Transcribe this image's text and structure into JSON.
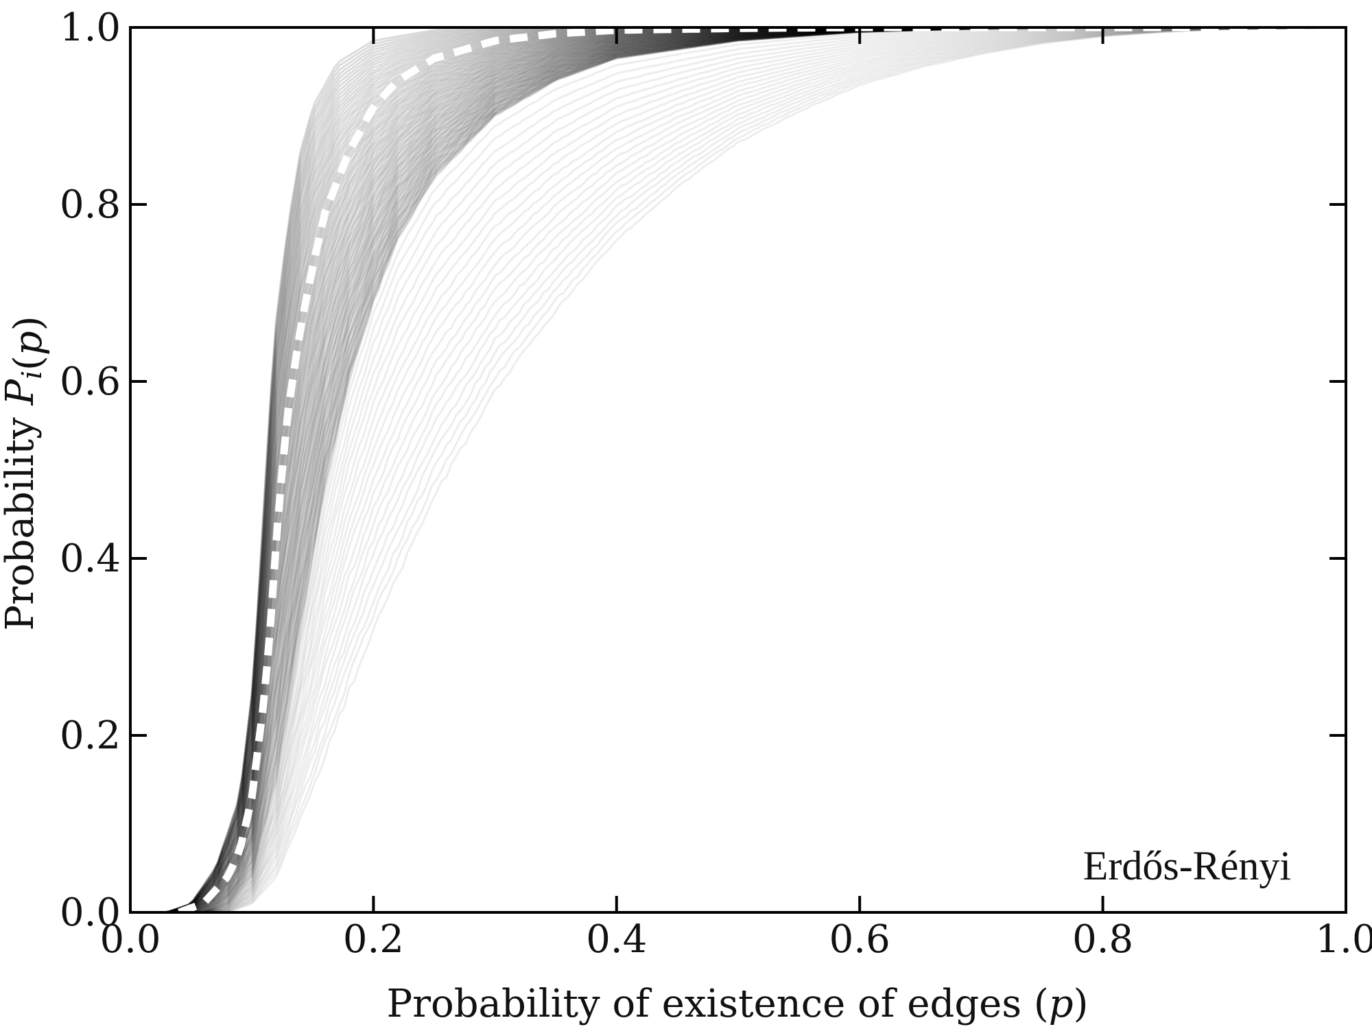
{
  "chart_data": {
    "type": "line",
    "title": "",
    "xlabel": "Probability of existence of edges (p)",
    "ylabel": "Probability P_i(p)",
    "xlim": [
      0.0,
      1.0
    ],
    "ylim": [
      0.0,
      1.0
    ],
    "x_ticks": [
      "0.0",
      "0.2",
      "0.4",
      "0.6",
      "0.8",
      "1.0"
    ],
    "y_ticks": [
      "0.0",
      "0.2",
      "0.4",
      "0.6",
      "0.8",
      "1.0"
    ],
    "grid": false,
    "legend": "none",
    "annotation": "Erdős-Rényi",
    "colors": {
      "trials": "#000000",
      "mean": "#ffffff",
      "axes": "#000000"
    },
    "series": [
      {
        "role": "mean",
        "style": "white-dashed",
        "x": [
          0.04,
          0.06,
          0.08,
          0.09,
          0.1,
          0.11,
          0.115,
          0.12,
          0.125,
          0.13,
          0.14,
          0.15,
          0.16,
          0.18,
          0.2,
          0.22,
          0.25,
          0.3,
          0.35,
          0.4,
          0.5,
          0.6,
          0.7,
          0.8,
          0.9,
          1.0
        ],
        "y": [
          0.0,
          0.01,
          0.04,
          0.07,
          0.13,
          0.24,
          0.32,
          0.42,
          0.5,
          0.57,
          0.66,
          0.73,
          0.79,
          0.86,
          0.91,
          0.94,
          0.965,
          0.985,
          0.993,
          0.997,
          0.999,
          1.0,
          1.0,
          1.0,
          1.0,
          1.0
        ]
      },
      {
        "role": "trials-left-edge",
        "style": "black-band-boundary",
        "x": [
          0.03,
          0.05,
          0.07,
          0.09,
          0.1,
          0.105,
          0.11,
          0.115,
          0.12,
          0.13,
          0.14,
          0.15,
          0.17,
          0.2,
          0.25,
          0.3,
          0.4,
          0.5,
          0.6,
          0.7,
          0.8,
          0.9,
          1.0
        ],
        "y": [
          0.0,
          0.01,
          0.05,
          0.13,
          0.25,
          0.35,
          0.46,
          0.58,
          0.67,
          0.78,
          0.86,
          0.91,
          0.96,
          0.985,
          0.997,
          1.0,
          1.0,
          1.0,
          1.0,
          1.0,
          1.0,
          1.0,
          1.0
        ]
      },
      {
        "role": "trials-dense-right-edge",
        "style": "black-band-boundary",
        "x": [
          0.06,
          0.08,
          0.1,
          0.12,
          0.14,
          0.16,
          0.18,
          0.2,
          0.22,
          0.25,
          0.3,
          0.35,
          0.4,
          0.5,
          0.6,
          0.7,
          0.8,
          0.9,
          1.0
        ],
        "y": [
          0.0,
          0.01,
          0.04,
          0.15,
          0.32,
          0.48,
          0.6,
          0.69,
          0.76,
          0.83,
          0.9,
          0.94,
          0.965,
          0.985,
          0.995,
          0.999,
          1.0,
          1.0,
          1.0
        ]
      },
      {
        "role": "trials-outer-right-edge",
        "style": "light-grey-trace",
        "x": [
          0.08,
          0.1,
          0.12,
          0.15,
          0.18,
          0.2,
          0.25,
          0.3,
          0.35,
          0.4,
          0.45,
          0.5,
          0.55,
          0.6,
          0.65,
          0.7,
          0.75,
          0.8,
          0.85,
          0.9,
          1.0
        ],
        "y": [
          0.0,
          0.01,
          0.04,
          0.14,
          0.25,
          0.32,
          0.47,
          0.59,
          0.68,
          0.76,
          0.82,
          0.87,
          0.905,
          0.935,
          0.955,
          0.97,
          0.982,
          0.99,
          0.995,
          0.998,
          1.0
        ]
      }
    ]
  }
}
